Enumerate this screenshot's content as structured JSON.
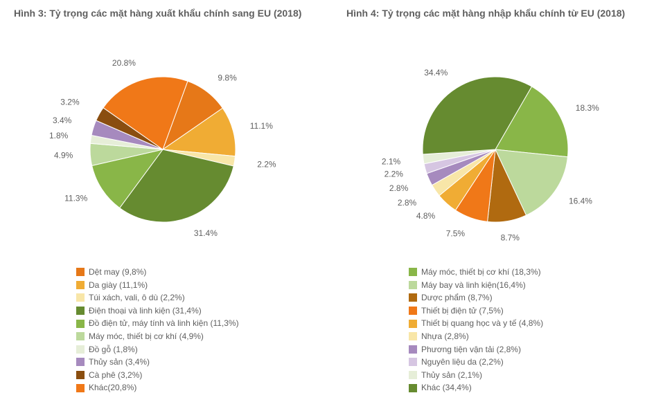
{
  "background_color": "#ffffff",
  "text_color": "#5f5f5f",
  "title_fontsize": 14,
  "label_fontsize": 12,
  "legend_fontsize": 12,
  "chart1": {
    "type": "pie",
    "title": "Hình 3: Tỷ trọng các mặt hàng xuất khẩu chính sang EU (2018)",
    "start_angle_deg": -70,
    "direction": "clockwise",
    "inner_radius": 0,
    "outer_radius": 105,
    "label_radius": 130,
    "slice_stroke": "#ffffff",
    "slice_stroke_width": 1,
    "slices": [
      {
        "label": "Dệt may (9,8%)",
        "value": 9.8,
        "color": "#e67818",
        "data_label": "9.8%"
      },
      {
        "label": "Da giày (11,1%)",
        "value": 11.1,
        "color": "#f0ac34",
        "data_label": "11.1%"
      },
      {
        "label": "Túi xách, vali, ô dù (2,2%)",
        "value": 2.2,
        "color": "#f8e6a8",
        "data_label": "2.2%"
      },
      {
        "label": "Điện thoại và linh kiện (31,4%)",
        "value": 31.4,
        "color": "#668b30",
        "data_label": "31.4%"
      },
      {
        "label": "Đồ điện tử, máy tính và linh kiện (11,3%)",
        "value": 11.3,
        "color": "#89b648",
        "data_label": "11.3%"
      },
      {
        "label": "Máy móc, thiết bị cơ khí  (4,9%)",
        "value": 4.9,
        "color": "#bcd99c",
        "data_label": "4.9%"
      },
      {
        "label": "Đồ gỗ (1,8%)",
        "value": 1.8,
        "color": "#e6eed8",
        "data_label": "1.8%"
      },
      {
        "label": "Thủy sản (3,4%)",
        "value": 3.4,
        "color": "#a68abe",
        "data_label": "3.4%"
      },
      {
        "label": "Cà phê (3,2%)",
        "value": 3.2,
        "color": "#8a4e10",
        "data_label": "3.2%"
      },
      {
        "label": "Khác(20,8%)",
        "value": 20.8,
        "color": "#f07818",
        "data_label": "20.8%"
      }
    ]
  },
  "chart2": {
    "type": "pie",
    "title": "Hình 4: Tỷ trọng các mặt hàng nhập khẩu chính từ EU (2018)",
    "start_angle_deg": -60,
    "direction": "clockwise",
    "inner_radius": 0,
    "outer_radius": 105,
    "label_radius": 130,
    "slice_stroke": "#ffffff",
    "slice_stroke_width": 1,
    "slices": [
      {
        "label": "Máy móc, thiết bị cơ khí (18,3%)",
        "value": 18.3,
        "color": "#89b648",
        "data_label": "18.3%"
      },
      {
        "label": "Máy bay và linh kiện(16,4%)",
        "value": 16.4,
        "color": "#bcd99c",
        "data_label": "16.4%"
      },
      {
        "label": "Dược phẩm (8,7%)",
        "value": 8.7,
        "color": "#b06a10",
        "data_label": "8.7%"
      },
      {
        "label": "Thiết bị điện tử (7,5%)",
        "value": 7.5,
        "color": "#f07818",
        "data_label": "7.5%"
      },
      {
        "label": "Thiết bị quang học và y tế (4,8%)",
        "value": 4.8,
        "color": "#f0ac34",
        "data_label": "4.8%"
      },
      {
        "label": "Nhựa (2,8%)",
        "value": 2.8,
        "color": "#f8e6a8",
        "data_label": "2.8%"
      },
      {
        "label": "Phương tiện vận tải (2,8%)",
        "value": 2.8,
        "color": "#a68abe",
        "data_label": "2.8%"
      },
      {
        "label": "Nguyên liệu da (2,2%)",
        "value": 2.2,
        "color": "#d6c6e2",
        "data_label": "2.2%"
      },
      {
        "label": "Thủy sản (2,1%)",
        "value": 2.1,
        "color": "#e6eed8",
        "data_label": "2.1%"
      },
      {
        "label": "Khác (34,4%)",
        "value": 34.4,
        "color": "#668b30",
        "data_label": "34.4%"
      }
    ]
  }
}
